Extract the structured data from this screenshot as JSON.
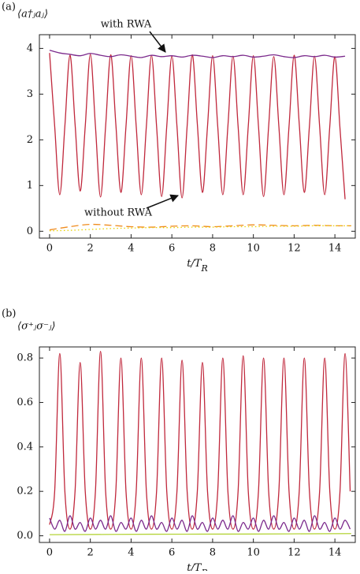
{
  "chart_data": [
    {
      "type": "line",
      "panel_label": "(a)",
      "y_label": "⟨a†ⱼaⱼ⟩",
      "x_label": {
        "main": "t/T",
        "sub": "R"
      },
      "xlim": [
        -0.5,
        15
      ],
      "ylim": [
        -0.15,
        4.3
      ],
      "xticks": [
        0,
        2,
        4,
        6,
        8,
        10,
        12,
        14
      ],
      "yticks": [
        0,
        1,
        2,
        3,
        4
      ],
      "annotations": [
        {
          "text": "with RWA"
        },
        {
          "text": "without RWA"
        }
      ],
      "series": [
        {
          "color": "#c0283c",
          "linestyle": "solid",
          "x": [
            0,
            0.25,
            0.5,
            0.75,
            1,
            1.25,
            1.5,
            1.75,
            2,
            2.25,
            2.5,
            2.75,
            3,
            3.25,
            3.5,
            3.75,
            4,
            4.25,
            4.5,
            4.75,
            5,
            5.25,
            5.5,
            5.75,
            6,
            6.25,
            6.5,
            6.75,
            7,
            7.25,
            7.5,
            7.75,
            8,
            8.25,
            8.5,
            8.75,
            9,
            9.25,
            9.5,
            9.75,
            10,
            10.25,
            10.5,
            10.75,
            11,
            11.25,
            11.5,
            11.75,
            12,
            12.25,
            12.5,
            12.75,
            13,
            13.25,
            13.5,
            13.75,
            14,
            14.25,
            14.5
          ],
          "values": [
            3.9,
            2.3,
            0.8,
            2.3,
            3.85,
            2.35,
            0.88,
            2.3,
            3.87,
            2.3,
            0.75,
            2.3,
            3.86,
            2.35,
            0.85,
            2.3,
            3.84,
            2.3,
            0.8,
            2.3,
            3.85,
            2.3,
            0.76,
            2.3,
            3.83,
            2.3,
            0.73,
            2.3,
            3.86,
            2.35,
            0.85,
            2.3,
            3.84,
            2.3,
            0.8,
            2.3,
            3.83,
            2.3,
            0.8,
            2.3,
            3.84,
            2.3,
            0.76,
            2.3,
            3.82,
            2.3,
            0.8,
            2.3,
            3.85,
            2.35,
            0.85,
            2.3,
            3.83,
            2.3,
            0.8,
            2.3,
            3.82,
            2.25,
            0.7
          ]
        },
        {
          "color": "#7b2a8c",
          "linestyle": "solid",
          "x": [
            0,
            0.5,
            1,
            1.5,
            2,
            2.5,
            3,
            3.5,
            4,
            4.5,
            5,
            5.5,
            6,
            6.5,
            7,
            7.5,
            8,
            8.5,
            9,
            9.5,
            10,
            10.5,
            11,
            11.5,
            12,
            12.5,
            13,
            13.5,
            14,
            14.5
          ],
          "values": [
            3.96,
            3.9,
            3.87,
            3.84,
            3.89,
            3.85,
            3.82,
            3.86,
            3.83,
            3.8,
            3.85,
            3.82,
            3.84,
            3.81,
            3.85,
            3.83,
            3.8,
            3.84,
            3.82,
            3.85,
            3.81,
            3.83,
            3.86,
            3.82,
            3.8,
            3.84,
            3.82,
            3.85,
            3.81,
            3.83
          ]
        },
        {
          "color": "#f08c1e",
          "linestyle": "dashed",
          "x": [
            0,
            1,
            2,
            3,
            4,
            5,
            6,
            7,
            8,
            9,
            10,
            11,
            12,
            13,
            14,
            14.8
          ],
          "values": [
            0.03,
            0.1,
            0.15,
            0.13,
            0.1,
            0.09,
            0.11,
            0.12,
            0.1,
            0.12,
            0.14,
            0.13,
            0.12,
            0.13,
            0.12,
            0.12
          ]
        },
        {
          "color": "#e8d200",
          "linestyle": "dotted",
          "x": [
            0,
            1,
            2,
            3,
            4,
            5,
            6,
            7,
            8,
            9,
            10,
            11,
            12,
            13,
            14,
            14.8
          ],
          "values": [
            0.01,
            0.02,
            0.04,
            0.06,
            0.07,
            0.08,
            0.08,
            0.09,
            0.09,
            0.1,
            0.1,
            0.11,
            0.11,
            0.12,
            0.12,
            0.12
          ]
        }
      ]
    },
    {
      "type": "line",
      "panel_label": "(b)",
      "y_label": "⟨σ⁺ⱼσ⁻ⱼ⟩",
      "x_label": {
        "main": "t/T",
        "sub": "R"
      },
      "xlim": [
        -0.5,
        15
      ],
      "ylim": [
        -0.03,
        0.85
      ],
      "xticks": [
        0,
        2,
        4,
        6,
        8,
        10,
        12,
        14
      ],
      "yticks": [
        {
          "value": 0,
          "label": "0.0"
        },
        0.2,
        0.4,
        0.6,
        0.8
      ],
      "series": [
        {
          "color": "#c0283c",
          "linestyle": "solid",
          "x": [
            0,
            0.25,
            0.5,
            0.75,
            1,
            1.25,
            1.5,
            1.75,
            2,
            2.25,
            2.5,
            2.75,
            3,
            3.25,
            3.5,
            3.75,
            4,
            4.25,
            4.5,
            4.75,
            5,
            5.25,
            5.5,
            5.75,
            6,
            6.25,
            6.5,
            6.75,
            7,
            7.25,
            7.5,
            7.75,
            8,
            8.25,
            8.5,
            8.75,
            9,
            9.25,
            9.5,
            9.75,
            10,
            10.25,
            10.5,
            10.75,
            11,
            11.25,
            11.5,
            11.75,
            12,
            12.25,
            12.5,
            12.75,
            13,
            13.25,
            13.5,
            13.75,
            14,
            14.25,
            14.5,
            14.75
          ],
          "values": [
            0.05,
            0.2,
            0.82,
            0.2,
            0.03,
            0.2,
            0.78,
            0.2,
            0.03,
            0.2,
            0.83,
            0.2,
            0.03,
            0.2,
            0.8,
            0.2,
            0.03,
            0.2,
            0.8,
            0.2,
            0.03,
            0.2,
            0.8,
            0.2,
            0.03,
            0.2,
            0.79,
            0.2,
            0.03,
            0.2,
            0.78,
            0.2,
            0.03,
            0.2,
            0.8,
            0.2,
            0.03,
            0.2,
            0.81,
            0.2,
            0.03,
            0.2,
            0.8,
            0.2,
            0.03,
            0.2,
            0.8,
            0.2,
            0.03,
            0.2,
            0.8,
            0.2,
            0.03,
            0.2,
            0.8,
            0.2,
            0.03,
            0.2,
            0.82,
            0.2
          ]
        },
        {
          "color": "#7b2a8c",
          "linestyle": "solid",
          "x": [
            0,
            0.25,
            0.5,
            0.75,
            1,
            1.25,
            1.5,
            1.75,
            2,
            2.25,
            2.5,
            2.75,
            3,
            3.25,
            3.5,
            3.75,
            4,
            4.25,
            4.5,
            4.75,
            5,
            5.25,
            5.5,
            5.75,
            6,
            6.25,
            6.5,
            6.75,
            7,
            7.25,
            7.5,
            7.75,
            8,
            8.25,
            8.5,
            8.75,
            9,
            9.25,
            9.5,
            9.75,
            10,
            10.25,
            10.5,
            10.75,
            11,
            11.25,
            11.5,
            11.75,
            12,
            12.25,
            12.5,
            12.75,
            13,
            13.25,
            13.5,
            13.75,
            14,
            14.25,
            14.5,
            14.75
          ],
          "values": [
            0.08,
            0.03,
            0.07,
            0.02,
            0.09,
            0.03,
            0.06,
            0.02,
            0.08,
            0.03,
            0.07,
            0.03,
            0.09,
            0.02,
            0.06,
            0.03,
            0.08,
            0.02,
            0.07,
            0.03,
            0.09,
            0.03,
            0.06,
            0.02,
            0.08,
            0.03,
            0.07,
            0.02,
            0.09,
            0.03,
            0.06,
            0.02,
            0.08,
            0.03,
            0.07,
            0.03,
            0.09,
            0.02,
            0.06,
            0.03,
            0.08,
            0.02,
            0.07,
            0.03,
            0.09,
            0.03,
            0.06,
            0.02,
            0.08,
            0.03,
            0.07,
            0.02,
            0.09,
            0.03,
            0.06,
            0.02,
            0.08,
            0.03,
            0.07,
            0.03
          ]
        },
        {
          "color": "#b5d43a",
          "linestyle": "solid",
          "x": [
            0,
            5,
            10,
            14.8
          ],
          "values": [
            0.005,
            0.007,
            0.008,
            0.01
          ]
        }
      ]
    }
  ]
}
